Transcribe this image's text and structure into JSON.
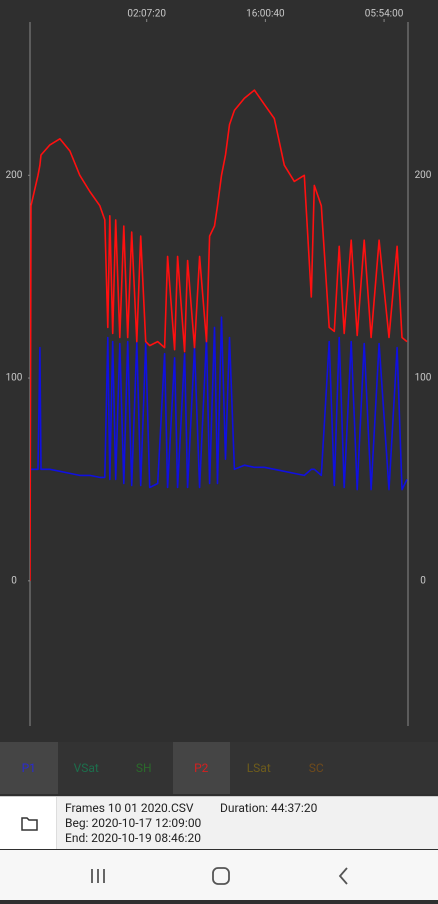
{
  "chart": {
    "type": "line",
    "x": [
      0.32,
      0.43,
      1.25,
      1.48,
      1.6,
      2.65,
      3.82,
      4.99,
      6.15,
      7.32,
      8.49,
      9.07,
      9.42,
      9.65,
      10.0,
      10.35,
      10.82,
      11.29,
      11.75,
      12.22,
      12.81,
      13.27,
      13.86,
      14.32,
      15.26,
      16.07,
      16.42,
      17.24,
      17.59,
      18.41,
      18.76,
      19.57,
      20.16,
      20.97,
      21.33,
      21.91,
      22.26,
      22.73,
      23.19,
      23.66,
      24.24,
      25.41,
      26.58,
      27.74,
      28.91,
      30.08,
      31.25,
      32.41,
      33.23,
      33.58,
      34.4,
      35.33,
      35.92,
      36.5,
      37.08,
      37.9,
      38.6,
      39.42,
      40.23,
      41.17,
      42.33,
      43.27,
      43.85,
      44.43
    ],
    "series": [
      {
        "name": "P1",
        "color": "#1010e0",
        "values": [
          55,
          55,
          55,
          115,
          55,
          55,
          54,
          53,
          52,
          52,
          51,
          51,
          120,
          50,
          118,
          50,
          117,
          48,
          118,
          47,
          118,
          47,
          117,
          46,
          48,
          112,
          46,
          110,
          46,
          112,
          46,
          115,
          46,
          120,
          48,
          125,
          48,
          130,
          60,
          120,
          55,
          57,
          56,
          56,
          55,
          54,
          53,
          52,
          55,
          55,
          52,
          118,
          47,
          120,
          46,
          118,
          45,
          117,
          45,
          117,
          45,
          115,
          45,
          50
        ]
      },
      {
        "name": "P2",
        "color": "#ff1010",
        "values": [
          0,
          185,
          200,
          205,
          210,
          215,
          218,
          212,
          200,
          192,
          185,
          178,
          125,
          180,
          122,
          178,
          120,
          175,
          120,
          172,
          118,
          170,
          118,
          116,
          118,
          115,
          160,
          114,
          160,
          113,
          158,
          115,
          160,
          118,
          170,
          175,
          185,
          200,
          210,
          225,
          232,
          238,
          242,
          235,
          228,
          205,
          197,
          200,
          140,
          195,
          185,
          125,
          123,
          165,
          122,
          168,
          121,
          168,
          120,
          168,
          120,
          165,
          120,
          118
        ]
      }
    ],
    "xlim": [
      0.317,
      44.55
    ],
    "xticks": [
      {
        "value": 13.972,
        "label": "02:07:20"
      },
      {
        "value": 27.861,
        "label": "16:00:40"
      },
      {
        "value": 41.75,
        "label": "05:54:00"
      }
    ],
    "ylim": [
      -71.6,
      275.6
    ],
    "yticks": [
      0,
      100,
      200
    ]
  },
  "tabs": [
    {
      "label": "P1",
      "color": "#2a2ad0",
      "selected": true
    },
    {
      "label": "VSat",
      "color": "#1d6e4c",
      "selected": false
    },
    {
      "label": "SH",
      "color": "#2b6a2b",
      "selected": false
    },
    {
      "label": "P2",
      "color": "#d42020",
      "selected": true
    },
    {
      "label": "LSat",
      "color": "#6e5c1c",
      "selected": false
    },
    {
      "label": "SC",
      "color": "#6e4a1c",
      "selected": false
    }
  ],
  "file": {
    "name": "Frames 10 01 2020.CSV",
    "duration": "Duration: 44:37:20",
    "begin": "Beg: 2020-10-17 12:09:00",
    "end": "End: 2020-10-19 08:46:20"
  }
}
